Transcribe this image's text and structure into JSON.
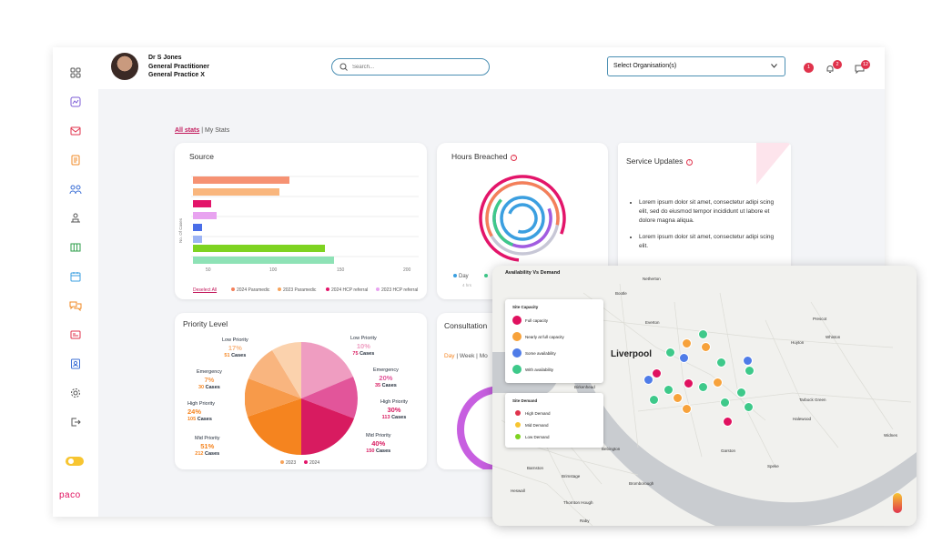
{
  "user": {
    "name": "Dr S Jones",
    "role": "General Practitioner",
    "practice": "General Practice X"
  },
  "search": {
    "placeholder": "Search..."
  },
  "org_select": {
    "label": "Select Organisation(s)"
  },
  "header_badges": {
    "alert": "1",
    "notifications": "2",
    "messages": "12"
  },
  "tabs": {
    "all": "All stats",
    "separator": "|",
    "my": "My Stats"
  },
  "sidebar_icons": [
    "dashboard-icon",
    "reports-icon",
    "mail-icon",
    "document-icon",
    "users-icon",
    "network-icon",
    "table-icon",
    "calendar-icon",
    "chat-icon",
    "id-card-icon",
    "contact-icon",
    "settings-icon",
    "logout-icon"
  ],
  "brand": {
    "logo": "paco"
  },
  "source_card": {
    "title": "Source",
    "ylabel": "No. Of Cases",
    "x_ticks": [
      "50",
      "100",
      "150",
      "200"
    ],
    "deselect": "Deselect All",
    "legend": [
      "2024 Paramedic",
      "2023 Paramedic",
      "2024 HCP referral",
      "2023 HCP referral"
    ]
  },
  "hours_card": {
    "title": "Hours Breached",
    "legend_day": "Day",
    "sub_text": "4 hrs"
  },
  "service_card": {
    "title": "Service Updates",
    "items": [
      "Lorem ipsum dolor sit amet, consectetur adipi scing elit, sed do eiusmod tempor incididunt ut labore et dolore magna aliqua.",
      "Lorem ipsum dolor sit amet, consectetur adipi scing elit."
    ]
  },
  "priority_card": {
    "title": "Priority Level",
    "legend": [
      "2023",
      "2024"
    ],
    "cases_word": "Cases",
    "left": [
      {
        "label": "Low Priority",
        "pct": "17%",
        "cases": "51"
      },
      {
        "label": "Emergency",
        "pct": "7%",
        "cases": "30"
      },
      {
        "label": "High Priority",
        "pct": "24%",
        "cases": "105"
      },
      {
        "label": "Mid Priority",
        "pct": "51%",
        "cases": "212"
      }
    ],
    "right": [
      {
        "label": "Low Priority",
        "pct": "10%",
        "cases": "75"
      },
      {
        "label": "Emergency",
        "pct": "20%",
        "cases": "35"
      },
      {
        "label": "High Priority",
        "pct": "30%",
        "cases": "113"
      },
      {
        "label": "Mid Priority",
        "pct": "40%",
        "cases": "150"
      }
    ]
  },
  "consult_card": {
    "title": "Consultation",
    "filter_day": "Day",
    "filter_week": "Week",
    "filter_mo": "Mo"
  },
  "map": {
    "title": "Availability Vs Demand",
    "capacity_title": "Site Capacity",
    "capacity": [
      "Full capacity",
      "Nearly at full capacity",
      "Some availability",
      "With availability"
    ],
    "demand_title": "Site Demand",
    "demand": [
      "High Demand",
      "Mid Demand",
      "Low Demand"
    ],
    "city": "Liverpool",
    "places": [
      "Bootle",
      "Everton",
      "Birkenhead",
      "Huyton",
      "Prescot",
      "Whiston",
      "Tarbock Green",
      "Halewood",
      "Garston",
      "Speke",
      "Bebington",
      "Barnston",
      "Heswall",
      "Bromborough",
      "Thornton Hough",
      "Raby",
      "Brimstage",
      "Widnes",
      "Netherton"
    ],
    "colors": {
      "full": "#e0115f",
      "nearly": "#f7a23b",
      "some": "#4f7ce8",
      "with": "#3ec98a"
    }
  }
}
